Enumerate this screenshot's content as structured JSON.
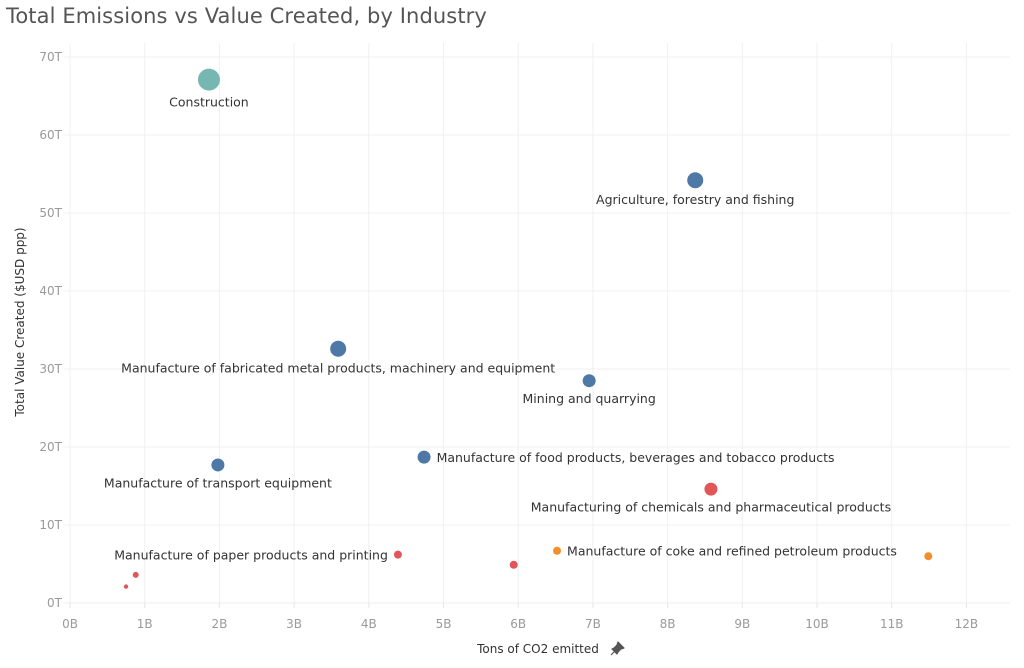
{
  "chart_data": {
    "type": "scatter",
    "title": "Total Emissions vs Value Created, by Industry",
    "xlabel": "Tons of CO2 emitted",
    "ylabel": "Total Value Created ($USD ppp)",
    "xlim": [
      0,
      12.6
    ],
    "ylim": [
      0,
      71.5
    ],
    "x_unit": "B",
    "y_unit": "T",
    "x_ticks": [
      "0B",
      "1B",
      "2B",
      "3B",
      "4B",
      "5B",
      "6B",
      "7B",
      "8B",
      "9B",
      "10B",
      "11B",
      "12B"
    ],
    "x_tick_values": [
      0,
      1,
      2,
      3,
      4,
      5,
      6,
      7,
      8,
      9,
      10,
      11,
      12
    ],
    "y_ticks": [
      "0T",
      "10T",
      "20T",
      "30T",
      "40T",
      "50T",
      "60T",
      "70T"
    ],
    "y_tick_values": [
      0,
      10,
      20,
      30,
      40,
      50,
      60,
      70
    ],
    "grid": true,
    "axis_pin_icon": "pin-icon",
    "points": [
      {
        "name": "Construction",
        "x": 1.86,
        "y": 67.1,
        "size": "xlarge",
        "color": "#76b7b2",
        "label": "Construction",
        "label_pos": "below"
      },
      {
        "name": "Agriculture, forestry and fishing",
        "x": 8.37,
        "y": 54.2,
        "size": "large",
        "color": "#4e79a7",
        "label": "Agriculture, forestry and fishing",
        "label_pos": "below"
      },
      {
        "name": "Manufacture of fabricated metal products, machinery and equipment",
        "x": 3.59,
        "y": 32.6,
        "size": "large",
        "color": "#4e79a7",
        "label": "Manufacture of fabricated metal products, machinery and equipment",
        "label_pos": "below"
      },
      {
        "name": "Mining and quarrying",
        "x": 6.95,
        "y": 28.5,
        "size": "medium",
        "color": "#4e79a7",
        "label": "Mining and quarrying",
        "label_pos": "below"
      },
      {
        "name": "Manufacture of transport equipment",
        "x": 1.98,
        "y": 17.7,
        "size": "medium",
        "color": "#4e79a7",
        "label": "Manufacture of transport equipment",
        "label_pos": "below"
      },
      {
        "name": "Manufacture of food products, beverages and tobacco products",
        "x": 4.74,
        "y": 18.7,
        "size": "medium",
        "color": "#4e79a7",
        "label": "Manufacture of food products, beverages and tobacco products",
        "label_pos": "right"
      },
      {
        "name": "Manufacturing of chemicals and pharmaceutical products",
        "x": 8.58,
        "y": 14.6,
        "size": "medium",
        "color": "#e15759",
        "label": "Manufacturing of chemicals and pharmaceutical products",
        "label_pos": "below"
      },
      {
        "name": "Manufacture of coke and refined petroleum products",
        "x": 6.52,
        "y": 6.7,
        "size": "small",
        "color": "#f28e2b",
        "label": "Manufacture of coke and refined petroleum products",
        "label_pos": "right"
      },
      {
        "name": "Manufacture of paper products and printing",
        "x": 4.39,
        "y": 6.2,
        "size": "small",
        "color": "#e15759",
        "label": "Manufacture of paper products and printing",
        "label_pos": "left"
      },
      {
        "name": "unlabeled-1",
        "x": 5.94,
        "y": 4.9,
        "size": "small",
        "color": "#e15759",
        "label": "",
        "label_pos": "none"
      },
      {
        "name": "unlabeled-2",
        "x": 11.49,
        "y": 6.0,
        "size": "small",
        "color": "#f28e2b",
        "label": "",
        "label_pos": "none"
      },
      {
        "name": "unlabeled-3",
        "x": 0.88,
        "y": 3.6,
        "size": "tiny",
        "color": "#e15759",
        "label": "",
        "label_pos": "none"
      },
      {
        "name": "unlabeled-4",
        "x": 0.75,
        "y": 2.1,
        "size": "xtiny",
        "color": "#e15759",
        "label": "",
        "label_pos": "none"
      }
    ]
  }
}
